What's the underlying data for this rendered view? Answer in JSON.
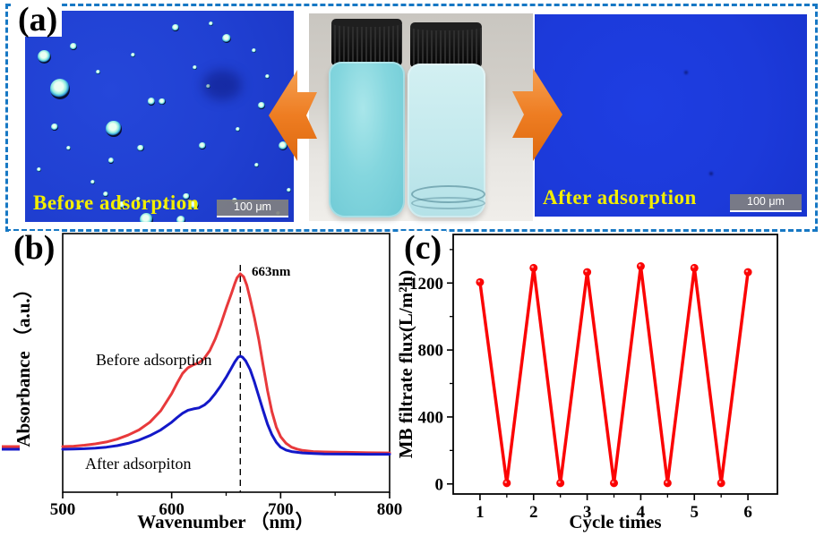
{
  "figure": {
    "panel_a_label": "(a)",
    "panel_b_label": "(b)",
    "panel_c_label": "(c)"
  },
  "panel_a": {
    "before_caption": "Before adsorption",
    "after_caption": "After adsorption",
    "scalebar_text": "100 μm",
    "border_color": "#1778c4",
    "arrow_color": "#ee7d22",
    "micro_blue": "#1e3ed8",
    "caption_color": "#f2ee00",
    "droplets": [
      [
        7,
        22,
        6
      ],
      [
        13,
        37,
        9
      ],
      [
        33,
        56,
        7
      ],
      [
        45,
        99,
        6
      ],
      [
        75,
        13,
        4
      ],
      [
        96,
        64,
        4
      ],
      [
        63,
        92,
        4
      ],
      [
        58,
        99,
        4
      ],
      [
        18,
        17,
        3
      ],
      [
        56,
        8,
        3
      ],
      [
        47,
        43,
        3.5
      ],
      [
        51,
        43,
        3
      ],
      [
        88,
        45,
        3
      ],
      [
        11,
        55,
        3
      ],
      [
        43,
        65,
        3
      ],
      [
        66,
        64,
        3
      ],
      [
        36,
        92,
        3
      ],
      [
        60,
        88,
        3
      ],
      [
        30,
        87,
        2.5
      ],
      [
        78,
        90,
        2.5
      ],
      [
        32,
        71,
        2.5
      ],
      [
        63,
        27,
        2
      ],
      [
        68,
        36,
        2
      ],
      [
        85,
        19,
        2
      ],
      [
        25,
        81,
        2
      ],
      [
        42,
        89,
        2
      ],
      [
        52,
        93,
        2
      ],
      [
        88,
        93,
        2
      ],
      [
        94,
        96,
        2
      ],
      [
        20,
        93,
        2
      ],
      [
        69,
        6,
        2
      ],
      [
        90,
        31,
        2
      ],
      [
        79,
        56,
        2
      ],
      [
        86,
        73,
        2
      ],
      [
        27,
        29,
        2
      ],
      [
        40,
        21,
        2
      ],
      [
        98,
        85,
        2
      ],
      [
        5,
        75,
        2
      ],
      [
        16,
        65,
        2
      ]
    ],
    "after_specks": [
      [
        55,
        28
      ],
      [
        64,
        78
      ]
    ]
  },
  "chart_data": [
    {
      "id": "b",
      "type": "line",
      "xlabel": "Wavenumber （nm）",
      "ylabel": "Absorbance （a.u.）",
      "xlim": [
        500,
        800
      ],
      "xticks": [
        500,
        600,
        700,
        800
      ],
      "xminor": [
        550,
        650,
        750
      ],
      "grid": false,
      "legend": "inline text labels",
      "annotation": {
        "text": "663nm",
        "x": 663
      },
      "series": [
        {
          "name": "Before adsorption",
          "color": "#e8393b",
          "x": [
            500,
            510,
            520,
            530,
            540,
            550,
            560,
            570,
            580,
            590,
            600,
            605,
            610,
            615,
            620,
            625,
            630,
            635,
            640,
            645,
            650,
            655,
            658,
            660,
            663,
            666,
            669,
            672,
            676,
            680,
            684,
            688,
            692,
            696,
            700,
            705,
            710,
            715,
            720,
            730,
            740,
            760,
            780,
            800
          ],
          "y": [
            0.098,
            0.1,
            0.105,
            0.112,
            0.122,
            0.137,
            0.158,
            0.185,
            0.225,
            0.285,
            0.375,
            0.43,
            0.48,
            0.51,
            0.525,
            0.535,
            0.56,
            0.6,
            0.66,
            0.735,
            0.82,
            0.9,
            0.95,
            0.98,
            1.0,
            0.985,
            0.94,
            0.87,
            0.77,
            0.655,
            0.52,
            0.39,
            0.28,
            0.2,
            0.15,
            0.115,
            0.095,
            0.085,
            0.078,
            0.072,
            0.07,
            0.068,
            0.066,
            0.065
          ]
        },
        {
          "name": "After adsorpiton",
          "color": "#1318c8",
          "x": [
            500,
            510,
            520,
            530,
            540,
            550,
            560,
            570,
            580,
            590,
            600,
            605,
            610,
            615,
            620,
            625,
            630,
            635,
            640,
            645,
            650,
            654,
            658,
            661,
            663,
            665,
            668,
            672,
            676,
            680,
            684,
            688,
            692,
            696,
            700,
            705,
            710,
            715,
            720,
            730,
            740,
            760,
            780,
            800
          ],
          "y": [
            0.084,
            0.085,
            0.087,
            0.09,
            0.095,
            0.103,
            0.115,
            0.132,
            0.155,
            0.185,
            0.225,
            0.25,
            0.272,
            0.288,
            0.295,
            0.3,
            0.315,
            0.34,
            0.375,
            0.415,
            0.46,
            0.5,
            0.54,
            0.565,
            0.57,
            0.565,
            0.545,
            0.5,
            0.435,
            0.36,
            0.285,
            0.215,
            0.16,
            0.12,
            0.095,
            0.08,
            0.072,
            0.068,
            0.065,
            0.062,
            0.06,
            0.059,
            0.058,
            0.058
          ]
        }
      ]
    },
    {
      "id": "c",
      "type": "line",
      "xlabel": "Cycle times",
      "ylabel": "MB filtrate flux(L/m²h)",
      "x": [
        1,
        1.5,
        2,
        2.5,
        3,
        3.5,
        4,
        4.5,
        5,
        5.5,
        6
      ],
      "values": [
        1205,
        5,
        1290,
        5,
        1265,
        5,
        1300,
        5,
        1290,
        5,
        1265
      ],
      "xticks": [
        1,
        2,
        3,
        4,
        5,
        6
      ],
      "xminor": [
        1.5,
        2.5,
        3.5,
        4.5,
        5.5
      ],
      "yticks": [
        0,
        400,
        800,
        1200
      ],
      "yminor": [
        200,
        600,
        1000,
        1400
      ],
      "xlim": [
        0.5,
        6.55
      ],
      "ylim": [
        -60,
        1490
      ],
      "color": "#fb0404",
      "marker": "circle",
      "grid": false
    }
  ]
}
